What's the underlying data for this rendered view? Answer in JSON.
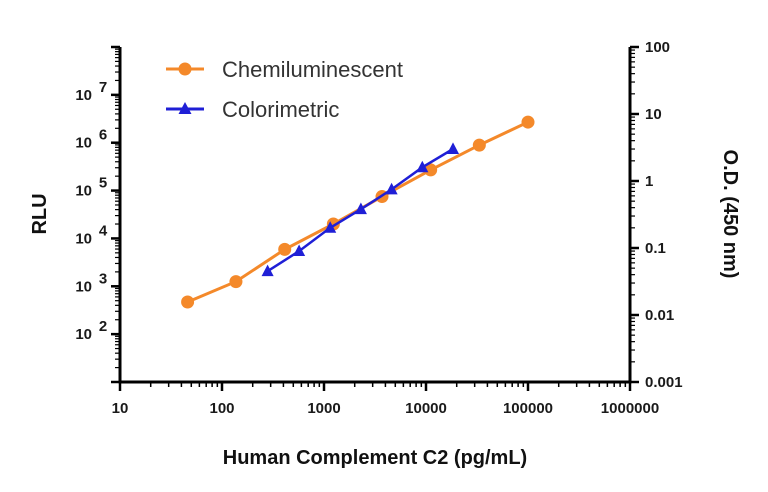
{
  "chart_data": {
    "type": "line",
    "xlabel": "Human Complement C2 (pg/mL)",
    "ylabel": "RLU",
    "y2label": "O.D. (450 nm)",
    "x_scale": "log",
    "y_scale": "log",
    "y2_scale": "log",
    "xlim": [
      10,
      1000000
    ],
    "ylim": [
      10,
      100000000
    ],
    "y2lim": [
      0.001,
      100
    ],
    "x_tick_labels": [
      "10",
      "100",
      "1000",
      "10000",
      "100000",
      "1000000"
    ],
    "y_tick_base": "10",
    "y_tick_exponents": [
      "2",
      "3",
      "4",
      "5",
      "6",
      "7"
    ],
    "y2_tick_labels": [
      "0.001",
      "0.01",
      "0.1",
      "1",
      "10",
      "100"
    ],
    "grid": false,
    "legend_position": "top-left",
    "series": [
      {
        "name": "Chemiluminescent",
        "axis": "left",
        "marker": "circle",
        "color": "#F4892A",
        "x": [
          46,
          137,
          412,
          1235,
          3704,
          11111,
          33333,
          100000
        ],
        "y": [
          470,
          1250,
          5900,
          20000,
          75000,
          270000,
          890000,
          2700000
        ]
      },
      {
        "name": "Colorimetric",
        "axis": "right",
        "marker": "triangle",
        "color": "#1F1FD6",
        "x": [
          280,
          570,
          1150,
          2300,
          4600,
          9200,
          18400
        ],
        "y": [
          0.045,
          0.09,
          0.2,
          0.38,
          0.75,
          1.6,
          3.0
        ]
      }
    ]
  }
}
